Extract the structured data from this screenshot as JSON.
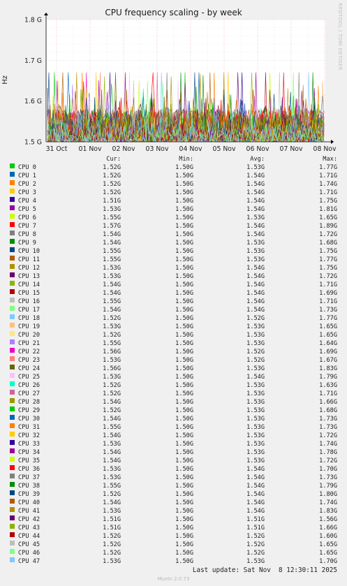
{
  "chart_data": {
    "type": "line",
    "title": "CPU frequency scaling - by week",
    "ylabel": "Hz",
    "ylim": [
      1.5,
      1.8
    ],
    "yticks": [
      {
        "value": 1.5,
        "label": "1.5 G"
      },
      {
        "value": 1.6,
        "label": "1.6 G"
      },
      {
        "value": 1.7,
        "label": "1.7 G"
      },
      {
        "value": 1.8,
        "label": "1.8 G"
      }
    ],
    "xticks": [
      "31 Oct",
      "01 Nov",
      "02 Nov",
      "03 Nov",
      "04 Nov",
      "05 Nov",
      "06 Nov",
      "07 Nov",
      "08 Nov"
    ],
    "grid": true,
    "legend_headers": {
      "cur": "Cur:",
      "min": "Min:",
      "avg": "Avg:",
      "max": "Max:"
    },
    "series": [
      {
        "name": "CPU 0",
        "color": "#00cc00",
        "cur": "1.52G",
        "min": "1.50G",
        "avg": "1.53G",
        "max": "1.77G"
      },
      {
        "name": "CPU 1",
        "color": "#0066b3",
        "cur": "1.52G",
        "min": "1.50G",
        "avg": "1.54G",
        "max": "1.71G"
      },
      {
        "name": "CPU 2",
        "color": "#ff8000",
        "cur": "1.52G",
        "min": "1.50G",
        "avg": "1.54G",
        "max": "1.74G"
      },
      {
        "name": "CPU 3",
        "color": "#ffcc00",
        "cur": "1.52G",
        "min": "1.50G",
        "avg": "1.54G",
        "max": "1.71G"
      },
      {
        "name": "CPU 4",
        "color": "#330099",
        "cur": "1.51G",
        "min": "1.50G",
        "avg": "1.54G",
        "max": "1.75G"
      },
      {
        "name": "CPU 5",
        "color": "#990099",
        "cur": "1.53G",
        "min": "1.50G",
        "avg": "1.54G",
        "max": "1.81G"
      },
      {
        "name": "CPU 6",
        "color": "#ccff00",
        "cur": "1.55G",
        "min": "1.50G",
        "avg": "1.53G",
        "max": "1.65G"
      },
      {
        "name": "CPU 7",
        "color": "#ff0000",
        "cur": "1.57G",
        "min": "1.50G",
        "avg": "1.54G",
        "max": "1.89G"
      },
      {
        "name": "CPU 8",
        "color": "#808080",
        "cur": "1.54G",
        "min": "1.50G",
        "avg": "1.54G",
        "max": "1.72G"
      },
      {
        "name": "CPU 9",
        "color": "#008f00",
        "cur": "1.54G",
        "min": "1.50G",
        "avg": "1.53G",
        "max": "1.68G"
      },
      {
        "name": "CPU 10",
        "color": "#00487d",
        "cur": "1.55G",
        "min": "1.50G",
        "avg": "1.53G",
        "max": "1.75G"
      },
      {
        "name": "CPU 11",
        "color": "#b35a00",
        "cur": "1.55G",
        "min": "1.50G",
        "avg": "1.53G",
        "max": "1.77G"
      },
      {
        "name": "CPU 12",
        "color": "#b38f00",
        "cur": "1.53G",
        "min": "1.50G",
        "avg": "1.54G",
        "max": "1.75G"
      },
      {
        "name": "CPU 13",
        "color": "#6b006b",
        "cur": "1.53G",
        "min": "1.50G",
        "avg": "1.54G",
        "max": "1.72G"
      },
      {
        "name": "CPU 14",
        "color": "#8fb300",
        "cur": "1.54G",
        "min": "1.50G",
        "avg": "1.54G",
        "max": "1.71G"
      },
      {
        "name": "CPU 15",
        "color": "#b30000",
        "cur": "1.54G",
        "min": "1.50G",
        "avg": "1.54G",
        "max": "1.69G"
      },
      {
        "name": "CPU 16",
        "color": "#bebebe",
        "cur": "1.55G",
        "min": "1.50G",
        "avg": "1.54G",
        "max": "1.71G"
      },
      {
        "name": "CPU 17",
        "color": "#80ff80",
        "cur": "1.54G",
        "min": "1.50G",
        "avg": "1.54G",
        "max": "1.73G"
      },
      {
        "name": "CPU 18",
        "color": "#80c9ff",
        "cur": "1.52G",
        "min": "1.50G",
        "avg": "1.52G",
        "max": "1.77G"
      },
      {
        "name": "CPU 19",
        "color": "#ffc080",
        "cur": "1.53G",
        "min": "1.50G",
        "avg": "1.53G",
        "max": "1.65G"
      },
      {
        "name": "CPU 20",
        "color": "#ffe680",
        "cur": "1.52G",
        "min": "1.50G",
        "avg": "1.53G",
        "max": "1.65G"
      },
      {
        "name": "CPU 21",
        "color": "#aa80ff",
        "cur": "1.55G",
        "min": "1.50G",
        "avg": "1.53G",
        "max": "1.64G"
      },
      {
        "name": "CPU 22",
        "color": "#ee00cc",
        "cur": "1.56G",
        "min": "1.50G",
        "avg": "1.52G",
        "max": "1.69G"
      },
      {
        "name": "CPU 23",
        "color": "#ff8080",
        "cur": "1.53G",
        "min": "1.50G",
        "avg": "1.52G",
        "max": "1.67G"
      },
      {
        "name": "CPU 24",
        "color": "#666600",
        "cur": "1.56G",
        "min": "1.50G",
        "avg": "1.53G",
        "max": "1.83G"
      },
      {
        "name": "CPU 25",
        "color": "#ffbfff",
        "cur": "1.53G",
        "min": "1.50G",
        "avg": "1.54G",
        "max": "1.79G"
      },
      {
        "name": "CPU 26",
        "color": "#00ffcc",
        "cur": "1.52G",
        "min": "1.50G",
        "avg": "1.53G",
        "max": "1.63G"
      },
      {
        "name": "CPU 27",
        "color": "#cc6699",
        "cur": "1.52G",
        "min": "1.50G",
        "avg": "1.53G",
        "max": "1.71G"
      },
      {
        "name": "CPU 28",
        "color": "#999900",
        "cur": "1.54G",
        "min": "1.50G",
        "avg": "1.53G",
        "max": "1.66G"
      },
      {
        "name": "CPU 29",
        "color": "#00cc00",
        "cur": "1.52G",
        "min": "1.50G",
        "avg": "1.53G",
        "max": "1.68G"
      },
      {
        "name": "CPU 30",
        "color": "#0066b3",
        "cur": "1.54G",
        "min": "1.50G",
        "avg": "1.53G",
        "max": "1.73G"
      },
      {
        "name": "CPU 31",
        "color": "#ff8000",
        "cur": "1.55G",
        "min": "1.50G",
        "avg": "1.53G",
        "max": "1.73G"
      },
      {
        "name": "CPU 32",
        "color": "#ffcc00",
        "cur": "1.54G",
        "min": "1.50G",
        "avg": "1.53G",
        "max": "1.72G"
      },
      {
        "name": "CPU 33",
        "color": "#330099",
        "cur": "1.53G",
        "min": "1.50G",
        "avg": "1.53G",
        "max": "1.74G"
      },
      {
        "name": "CPU 34",
        "color": "#990099",
        "cur": "1.54G",
        "min": "1.50G",
        "avg": "1.53G",
        "max": "1.78G"
      },
      {
        "name": "CPU 35",
        "color": "#ccff00",
        "cur": "1.54G",
        "min": "1.50G",
        "avg": "1.53G",
        "max": "1.72G"
      },
      {
        "name": "CPU 36",
        "color": "#ff0000",
        "cur": "1.53G",
        "min": "1.50G",
        "avg": "1.54G",
        "max": "1.70G"
      },
      {
        "name": "CPU 37",
        "color": "#808080",
        "cur": "1.53G",
        "min": "1.50G",
        "avg": "1.54G",
        "max": "1.73G"
      },
      {
        "name": "CPU 38",
        "color": "#008f00",
        "cur": "1.55G",
        "min": "1.50G",
        "avg": "1.54G",
        "max": "1.79G"
      },
      {
        "name": "CPU 39",
        "color": "#00487d",
        "cur": "1.52G",
        "min": "1.50G",
        "avg": "1.54G",
        "max": "1.80G"
      },
      {
        "name": "CPU 40",
        "color": "#b35a00",
        "cur": "1.54G",
        "min": "1.50G",
        "avg": "1.54G",
        "max": "1.74G"
      },
      {
        "name": "CPU 41",
        "color": "#b38f00",
        "cur": "1.53G",
        "min": "1.50G",
        "avg": "1.54G",
        "max": "1.83G"
      },
      {
        "name": "CPU 42",
        "color": "#6b006b",
        "cur": "1.51G",
        "min": "1.50G",
        "avg": "1.51G",
        "max": "1.56G"
      },
      {
        "name": "CPU 43",
        "color": "#8fb300",
        "cur": "1.51G",
        "min": "1.50G",
        "avg": "1.51G",
        "max": "1.66G"
      },
      {
        "name": "CPU 44",
        "color": "#b30000",
        "cur": "1.52G",
        "min": "1.50G",
        "avg": "1.52G",
        "max": "1.60G"
      },
      {
        "name": "CPU 45",
        "color": "#bebebe",
        "cur": "1.52G",
        "min": "1.50G",
        "avg": "1.52G",
        "max": "1.65G"
      },
      {
        "name": "CPU 46",
        "color": "#80ff80",
        "cur": "1.52G",
        "min": "1.50G",
        "avg": "1.52G",
        "max": "1.65G"
      },
      {
        "name": "CPU 47",
        "color": "#80c9ff",
        "cur": "1.53G",
        "min": "1.50G",
        "avg": "1.53G",
        "max": "1.70G"
      }
    ]
  },
  "side_credit": "RRDTOOL / TOBI OETIKER",
  "last_update": "Last update: Sat Nov  8 12:30:11 2025",
  "footer": "Munin 2.0.73"
}
